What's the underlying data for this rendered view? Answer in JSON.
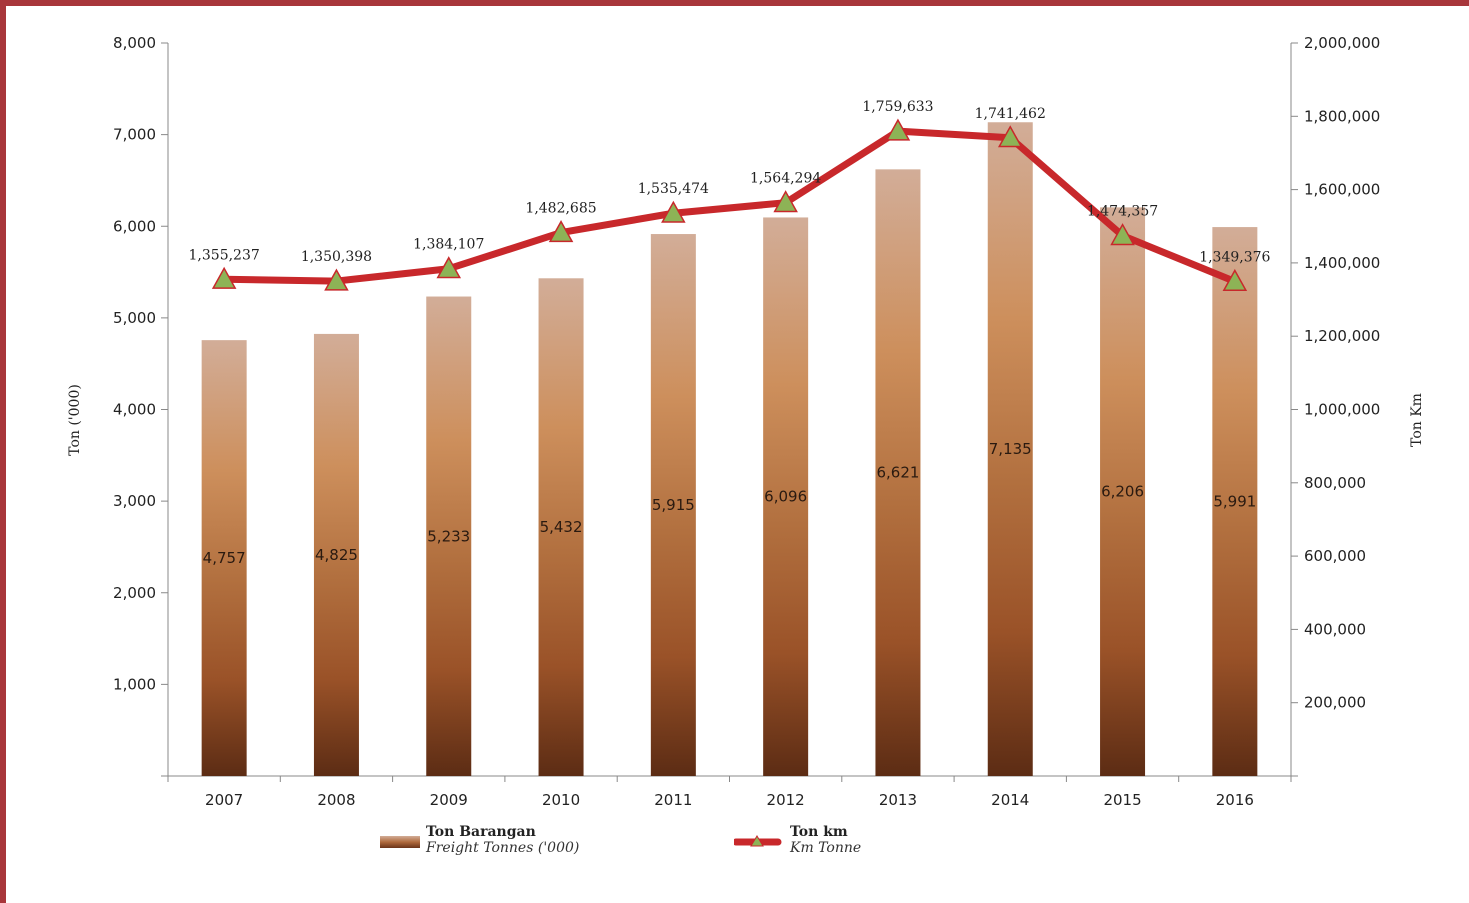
{
  "colors": {
    "frame": "#a8363b",
    "line": "#c8282b",
    "marker_fill": "#8db356",
    "marker_stroke": "#c8282b",
    "bar_top": "#d2ad98",
    "bar_mid": "#cd8f5c",
    "bar_bottom": "#5c2c14"
  },
  "legend": {
    "bars": {
      "name": "Ton Barangan",
      "sub": "Freight Tonnes ('000)"
    },
    "line": {
      "name": "Ton km",
      "sub": "Km Tonne"
    }
  },
  "chart_data": {
    "type": "bar",
    "categories": [
      "2007",
      "2008",
      "2009",
      "2010",
      "2011",
      "2012",
      "2013",
      "2014",
      "2015",
      "2016"
    ],
    "series": [
      {
        "name": "Ton Barangan",
        "type": "bar",
        "axis": "left",
        "values": [
          4757,
          4825,
          5233,
          5432,
          5915,
          6096,
          6621,
          7135,
          6206,
          5991
        ],
        "labels": [
          "4,757",
          "4,825",
          "5,233",
          "5,432",
          "5,915",
          "6,096",
          "6,621",
          "7,135",
          "6,206",
          "5,991"
        ]
      },
      {
        "name": "Ton km",
        "type": "line",
        "axis": "right",
        "values": [
          1355237,
          1350398,
          1384107,
          1482685,
          1535474,
          1564294,
          1759633,
          1741462,
          1474357,
          1349376
        ],
        "labels": [
          "1,355,237",
          "1,350,398",
          "1,384,107",
          "1,482,685",
          "1,535,474",
          "1,564,294",
          "1,759,633",
          "1,741,462",
          "1,474,357",
          "1,349,376"
        ]
      }
    ],
    "ylabel": "Ton ('000)",
    "y2label": "Ton Km",
    "ylim": [
      0,
      8000
    ],
    "y2lim": [
      0,
      2000000
    ],
    "yticks": [
      "1,000",
      "2,000",
      "3,000",
      "4,000",
      "5,000",
      "6,000",
      "7,000",
      "8,000"
    ],
    "y2ticks": [
      "200,000",
      "400,000",
      "600,000",
      "800,000",
      "1,000,000",
      "1,200,000",
      "1,400,000",
      "1,600,000",
      "1,800,000",
      "2,000,000"
    ],
    "grid": false,
    "legend_position": "bottom"
  }
}
